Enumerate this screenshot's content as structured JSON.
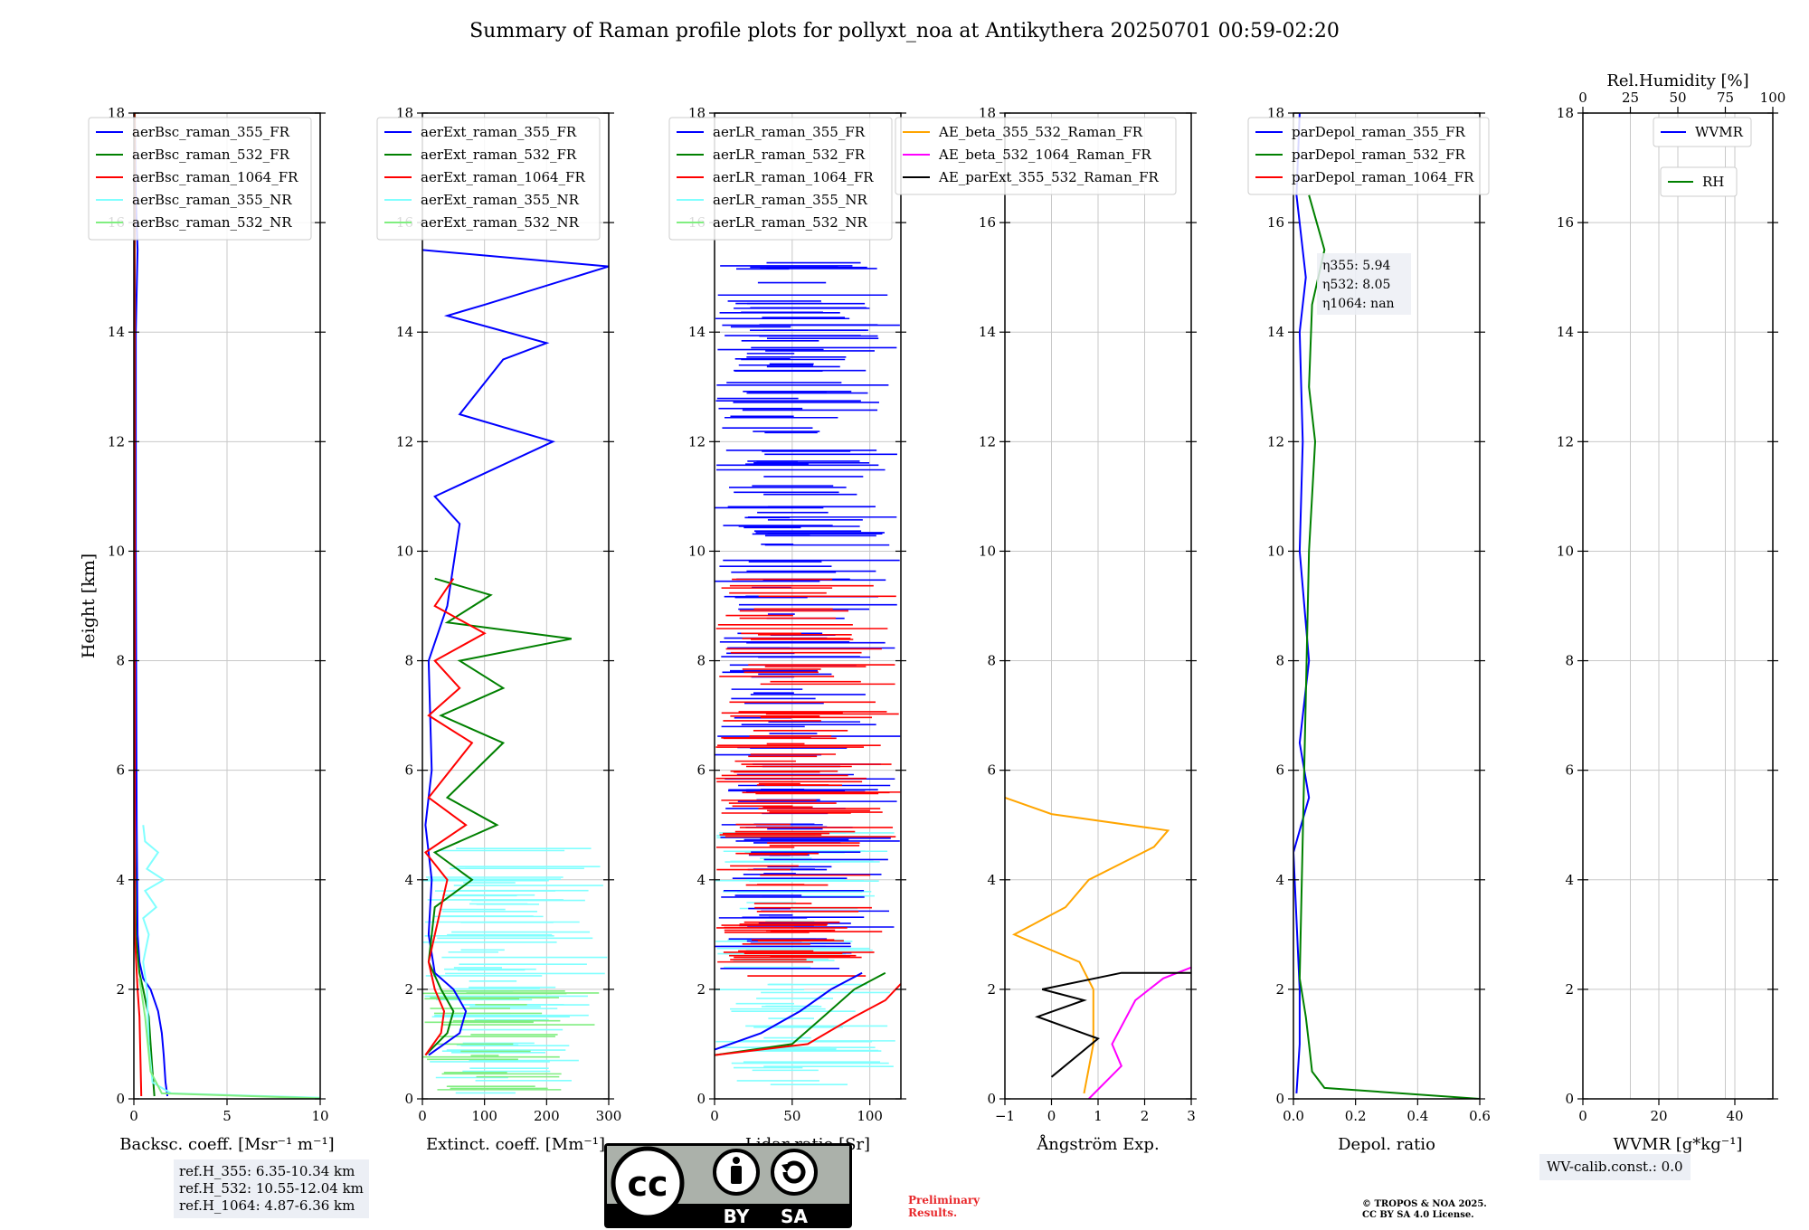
{
  "title": "Summary of Raman profile plots for pollyxt_noa at Antikythera 20250701 00:59-02:20",
  "ylabel": "Height [km]",
  "reference_heights": [
    "ref.H_355: 6.35-10.34 km",
    "ref.H_532: 10.55-12.04 km",
    "ref.H_1064: 4.87-6.36 km"
  ],
  "wv_calib": "WV-calib.const.: 0.0",
  "preliminary": [
    "Preliminary",
    "Results."
  ],
  "copyright": [
    "© TROPOS & NOA 2025.",
    "CC BY SA 4.0 License."
  ],
  "license_badge": {
    "by": "BY",
    "sa": "SA",
    "icon": "cc-by-sa-icon"
  },
  "colors": {
    "blue": "#0000ff",
    "green": "#008000",
    "red": "#ff0000",
    "cyan": "#80ffff",
    "lightgreen": "#80ee80",
    "orange": "#ffa500",
    "magenta": "#ff00ff",
    "black": "#000000"
  },
  "chart_data": [
    {
      "type": "line",
      "name": "backscatter",
      "xlabel": "Backsc. coeff. [Msr⁻¹ m⁻¹]",
      "xlim": [
        0,
        10
      ],
      "ylim": [
        0,
        18
      ],
      "xticks": [
        0,
        5,
        10
      ],
      "xticklabels": [
        "0",
        "5",
        "10"
      ],
      "yticks": [
        0,
        2,
        4,
        6,
        8,
        10,
        12,
        14,
        16,
        18
      ],
      "legend": [
        "aerBsc_raman_355_FR",
        "aerBsc_raman_532_FR",
        "aerBsc_raman_1064_FR",
        "aerBsc_raman_355_NR",
        "aerBsc_raman_532_NR"
      ],
      "series": [
        {
          "name": "aerBsc_raman_355_FR",
          "color": "#0000ff",
          "points": [
            [
              1.8,
              0.05
            ],
            [
              1.7,
              0.3
            ],
            [
              1.6,
              0.8
            ],
            [
              1.5,
              1.2
            ],
            [
              1.3,
              1.6
            ],
            [
              0.9,
              2.0
            ],
            [
              0.5,
              2.2
            ],
            [
              0.3,
              2.5
            ],
            [
              0.2,
              3.0
            ],
            [
              0.15,
              5.0
            ],
            [
              0.1,
              10
            ],
            [
              0.1,
              14
            ],
            [
              0.2,
              15.5
            ],
            [
              0.1,
              16.5
            ],
            [
              0.05,
              18
            ]
          ]
        },
        {
          "name": "aerBsc_raman_532_FR",
          "color": "#008000",
          "points": [
            [
              1.1,
              0.05
            ],
            [
              1.0,
              0.5
            ],
            [
              0.9,
              1.0
            ],
            [
              0.8,
              1.5
            ],
            [
              0.5,
              2.0
            ],
            [
              0.3,
              2.3
            ],
            [
              0.1,
              3.0
            ],
            [
              0.05,
              5
            ],
            [
              0.05,
              18
            ]
          ]
        },
        {
          "name": "aerBsc_raman_1064_FR",
          "color": "#ff0000",
          "points": [
            [
              0.4,
              0.05
            ],
            [
              0.35,
              0.8
            ],
            [
              0.3,
              1.5
            ],
            [
              0.2,
              2.0
            ],
            [
              0.05,
              3.0
            ],
            [
              0.05,
              8
            ],
            [
              0.03,
              18
            ]
          ]
        },
        {
          "name": "aerBsc_raman_355_NR",
          "color": "#80ffff",
          "points": [
            [
              10,
              0.02
            ],
            [
              2.0,
              0.1
            ],
            [
              1.0,
              0.3
            ],
            [
              0.8,
              1.0
            ],
            [
              0.7,
              2.0
            ],
            [
              0.5,
              2.5
            ],
            [
              0.8,
              3.0
            ],
            [
              0.5,
              3.3
            ],
            [
              1.2,
              3.5
            ],
            [
              0.6,
              3.8
            ],
            [
              1.6,
              4.0
            ],
            [
              0.7,
              4.2
            ],
            [
              1.3,
              4.5
            ],
            [
              0.6,
              4.7
            ],
            [
              0.5,
              5.0
            ]
          ]
        },
        {
          "name": "aerBsc_raman_532_NR",
          "color": "#80ee80",
          "points": [
            [
              10,
              0.01
            ],
            [
              1.5,
              0.1
            ],
            [
              0.9,
              0.5
            ],
            [
              0.6,
              1.5
            ],
            [
              0.3,
              2.2
            ]
          ]
        }
      ]
    },
    {
      "type": "line",
      "name": "extinction",
      "xlabel": "Extinct. coeff. [Mm⁻¹]",
      "xlim": [
        0,
        300
      ],
      "ylim": [
        0,
        18
      ],
      "xticks": [
        0,
        100,
        200,
        300
      ],
      "xticklabels": [
        "0",
        "100",
        "200",
        "300"
      ],
      "yticks": [
        0,
        2,
        4,
        6,
        8,
        10,
        12,
        14,
        16,
        18
      ],
      "legend": [
        "aerExt_raman_355_FR",
        "aerExt_raman_532_FR",
        "aerExt_raman_1064_FR",
        "aerExt_raman_355_NR",
        "aerExt_raman_532_NR"
      ],
      "series": [
        {
          "name": "aerExt_raman_355_FR",
          "color": "#0000ff",
          "points": [
            [
              10,
              0.8
            ],
            [
              60,
              1.2
            ],
            [
              70,
              1.6
            ],
            [
              50,
              2.0
            ],
            [
              20,
              2.3
            ],
            [
              10,
              3.0
            ],
            [
              15,
              4.0
            ],
            [
              5,
              5.0
            ],
            [
              15,
              6.0
            ],
            [
              10,
              8.0
            ],
            [
              40,
              9.0
            ],
            [
              60,
              10.5
            ],
            [
              20,
              11.0
            ],
            [
              210,
              12.0
            ],
            [
              60,
              12.5
            ],
            [
              130,
              13.5
            ],
            [
              200,
              13.8
            ],
            [
              40,
              14.3
            ],
            [
              100,
              14.5
            ],
            [
              300,
              15.2
            ],
            [
              0,
              15.5
            ]
          ]
        },
        {
          "name": "aerExt_raman_532_FR",
          "color": "#008000",
          "points": [
            [
              5,
              0.8
            ],
            [
              40,
              1.2
            ],
            [
              50,
              1.6
            ],
            [
              30,
              2.0
            ],
            [
              10,
              2.5
            ],
            [
              20,
              3.5
            ],
            [
              80,
              4.0
            ],
            [
              20,
              4.5
            ],
            [
              120,
              5.0
            ],
            [
              40,
              5.5
            ],
            [
              130,
              6.5
            ],
            [
              30,
              7.0
            ],
            [
              130,
              7.5
            ],
            [
              60,
              8.0
            ],
            [
              240,
              8.4
            ],
            [
              40,
              8.7
            ],
            [
              110,
              9.2
            ],
            [
              20,
              9.5
            ]
          ]
        },
        {
          "name": "aerExt_raman_1064_FR",
          "color": "#ff0000",
          "points": [
            [
              5,
              0.8
            ],
            [
              30,
              1.2
            ],
            [
              35,
              1.6
            ],
            [
              20,
              2.0
            ],
            [
              10,
              2.5
            ],
            [
              40,
              4.0
            ],
            [
              5,
              4.5
            ],
            [
              70,
              5.0
            ],
            [
              10,
              5.5
            ],
            [
              80,
              6.5
            ],
            [
              10,
              7.0
            ],
            [
              60,
              7.5
            ],
            [
              20,
              8.0
            ],
            [
              100,
              8.5
            ],
            [
              20,
              9.0
            ],
            [
              50,
              9.5
            ]
          ]
        }
      ],
      "noise": [
        {
          "name": "aerExt_raman_355_NR",
          "color": "#80ffff",
          "ymin": 0.1,
          "ymax": 4.9,
          "xmax": 300
        },
        {
          "name": "aerExt_raman_532_NR",
          "color": "#80ee80",
          "ymin": 0.1,
          "ymax": 2.0,
          "xmax": 300
        }
      ]
    },
    {
      "type": "line",
      "name": "lidar_ratio",
      "xlabel": "Lidar ratio [Sr]",
      "xlim": [
        0,
        120
      ],
      "ylim": [
        0,
        18
      ],
      "xticks": [
        0,
        50,
        100
      ],
      "xticklabels": [
        "0",
        "50",
        "100"
      ],
      "yticks": [
        0,
        2,
        4,
        6,
        8,
        10,
        12,
        14,
        16,
        18
      ],
      "legend": [
        "aerLR_raman_355_FR",
        "aerLR_raman_532_FR",
        "aerLR_raman_1064_FR",
        "aerLR_raman_355_NR",
        "aerLR_raman_532_NR"
      ],
      "series": [
        {
          "name": "aerLR_raman_355_FR",
          "color": "#0000ff",
          "points": [
            [
              0,
              0.9
            ],
            [
              30,
              1.2
            ],
            [
              55,
              1.6
            ],
            [
              75,
              2.0
            ],
            [
              95,
              2.3
            ]
          ]
        },
        {
          "name": "aerLR_raman_532_FR",
          "color": "#008000",
          "points": [
            [
              0,
              0.8
            ],
            [
              50,
              1.0
            ],
            [
              70,
              1.5
            ],
            [
              90,
              2.0
            ],
            [
              110,
              2.3
            ]
          ]
        },
        {
          "name": "aerLR_raman_1064_FR",
          "color": "#ff0000",
          "points": [
            [
              0,
              0.8
            ],
            [
              60,
              1.0
            ],
            [
              90,
              1.5
            ],
            [
              110,
              1.8
            ],
            [
              120,
              2.1
            ]
          ]
        }
      ],
      "noise": [
        {
          "name": "aerLR_raman_355_NR",
          "color": "#80ffff",
          "ymin": 0.1,
          "ymax": 4.9,
          "xmax": 120
        },
        {
          "name": "aerLR_raman_355_FR",
          "color": "#0000ff",
          "ymin": 2.3,
          "ymax": 15.3,
          "xmax": 120
        },
        {
          "name": "aerLR_raman_1064_FR",
          "color": "#ff0000",
          "ymin": 2.2,
          "ymax": 9.5,
          "xmax": 120
        }
      ]
    },
    {
      "type": "line",
      "name": "angstrom",
      "xlabel": "Ångström Exp.",
      "xlim": [
        -1,
        3
      ],
      "ylim": [
        0,
        18
      ],
      "xticks": [
        -1,
        0,
        1,
        2,
        3
      ],
      "xticklabels": [
        "−1",
        "0",
        "1",
        "2",
        "3"
      ],
      "yticks": [
        0,
        2,
        4,
        6,
        8,
        10,
        12,
        14,
        16,
        18
      ],
      "legend": [
        "AE_beta_355_532_Raman_FR",
        "AE_beta_532_1064_Raman_FR",
        "AE_parExt_355_532_Raman_FR"
      ],
      "series": [
        {
          "name": "AE_beta_355_532_Raman_FR",
          "color": "#ffa500",
          "points": [
            [
              0.7,
              0.1
            ],
            [
              0.9,
              1.0
            ],
            [
              0.9,
              2.0
            ],
            [
              0.6,
              2.5
            ],
            [
              -0.8,
              3.0
            ],
            [
              0.3,
              3.5
            ],
            [
              0.8,
              4.0
            ],
            [
              1.5,
              4.3
            ],
            [
              2.2,
              4.6
            ],
            [
              2.5,
              4.9
            ],
            [
              0.0,
              5.2
            ],
            [
              -1,
              5.5
            ]
          ]
        },
        {
          "name": "AE_beta_532_1064_Raman_FR",
          "color": "#ff00ff",
          "points": [
            [
              0.8,
              0.0
            ],
            [
              1.5,
              0.6
            ],
            [
              1.3,
              1.0
            ],
            [
              1.8,
              1.8
            ],
            [
              2.4,
              2.2
            ],
            [
              3.0,
              2.4
            ]
          ]
        },
        {
          "name": "AE_parExt_355_532_Raman_FR",
          "color": "#000000",
          "points": [
            [
              0,
              0.4
            ],
            [
              1.0,
              1.1
            ],
            [
              -0.3,
              1.5
            ],
            [
              0.7,
              1.8
            ],
            [
              -0.2,
              2.0
            ],
            [
              1.5,
              2.3
            ],
            [
              3.0,
              2.3
            ]
          ]
        }
      ]
    },
    {
      "type": "line",
      "name": "depolarization",
      "xlabel": "Depol. ratio",
      "xlim": [
        0,
        0.6
      ],
      "ylim": [
        0,
        18
      ],
      "xticks": [
        0,
        0.2,
        0.4,
        0.6
      ],
      "xticklabels": [
        "0.0",
        "0.2",
        "0.4",
        "0.6"
      ],
      "yticks": [
        0,
        2,
        4,
        6,
        8,
        10,
        12,
        14,
        16,
        18
      ],
      "legend": [
        "parDepol_raman_355_FR",
        "parDepol_raman_532_FR",
        "parDepol_raman_1064_FR"
      ],
      "annotation": [
        "η355: 5.94",
        "η532: 8.05",
        "η1064: nan"
      ],
      "series": [
        {
          "name": "parDepol_raman_355_FR",
          "color": "#0000ff",
          "points": [
            [
              0.01,
              0.1
            ],
            [
              0.02,
              1.0
            ],
            [
              0.02,
              2.0
            ],
            [
              0.0,
              4.5
            ],
            [
              0.05,
              5.5
            ],
            [
              0.02,
              6.5
            ],
            [
              0.05,
              8.0
            ],
            [
              0.02,
              10.0
            ],
            [
              0.03,
              12.0
            ],
            [
              0.02,
              14.0
            ],
            [
              0.04,
              15.0
            ],
            [
              0.01,
              16.5
            ],
            [
              0.02,
              18
            ]
          ]
        },
        {
          "name": "parDepol_raman_532_FR",
          "color": "#008000",
          "points": [
            [
              0.6,
              0.0
            ],
            [
              0.1,
              0.2
            ],
            [
              0.06,
              0.5
            ],
            [
              0.05,
              1.0
            ],
            [
              0.04,
              1.5
            ],
            [
              0.02,
              2.2
            ],
            [
              0.05,
              10
            ],
            [
              0.07,
              12.0
            ],
            [
              0.05,
              13.0
            ],
            [
              0.06,
              14.5
            ],
            [
              0.1,
              15.5
            ],
            [
              0.05,
              16.5
            ]
          ]
        }
      ]
    },
    {
      "type": "line",
      "name": "water_vapor",
      "xlabel": "WVMR [g*kg⁻¹]",
      "top_xlabel": "Rel.Humidity [%]",
      "xlim": [
        0,
        50
      ],
      "ylim": [
        0,
        18
      ],
      "xticks": [
        0,
        20,
        40
      ],
      "xticklabels": [
        "0",
        "20",
        "40"
      ],
      "top_xticks": [
        0,
        25,
        50,
        75,
        100
      ],
      "top_xticklabels": [
        "0",
        "25",
        "50",
        "75",
        "100"
      ],
      "yticks": [
        0,
        2,
        4,
        6,
        8,
        10,
        12,
        14,
        16,
        18
      ],
      "legend": [
        "WVMR",
        "RH"
      ],
      "series": []
    }
  ]
}
